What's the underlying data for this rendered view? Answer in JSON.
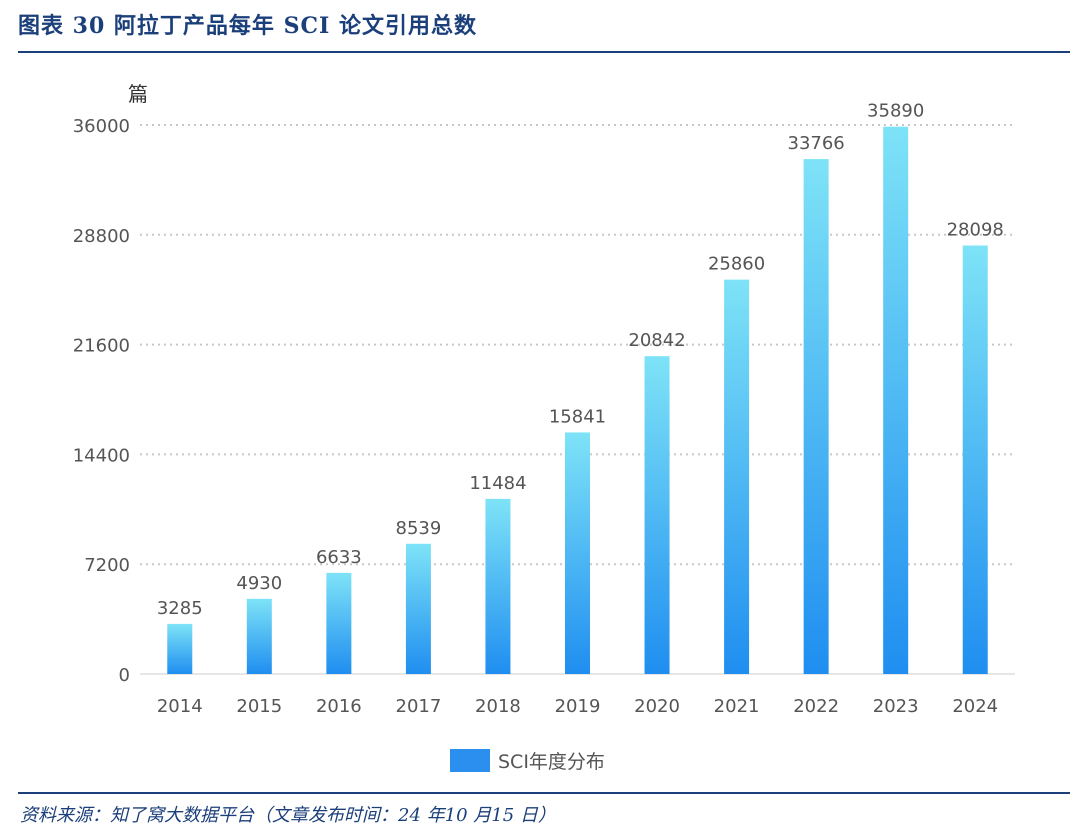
{
  "header": {
    "title": "图表 30   阿拉丁产品每年 SCI 论文引用总数"
  },
  "footer": {
    "source": "资料来源：知了窝大数据平台（文章发布时间：24 年10 月15 日）"
  },
  "chart_data": {
    "type": "bar",
    "title": "",
    "xlabel": "",
    "ylabel": "篇",
    "ylim": [
      0,
      36000
    ],
    "yticks": [
      0,
      7200,
      14400,
      21600,
      28800,
      36000
    ],
    "grid": true,
    "legend_position": "bottom-center",
    "categories": [
      "2014",
      "2015",
      "2016",
      "2017",
      "2018",
      "2019",
      "2020",
      "2021",
      "2022",
      "2023",
      "2024"
    ],
    "series": [
      {
        "name": "SCI年度分布",
        "values": [
          3285,
          4930,
          6633,
          8539,
          11484,
          15841,
          20842,
          25860,
          33766,
          35890,
          28098
        ]
      }
    ],
    "colors": {
      "bar_top": "#7ee3f7",
      "bar_bottom": "#1f8ef0",
      "legend": "#2a8fee",
      "axis_text": "#555555"
    }
  }
}
